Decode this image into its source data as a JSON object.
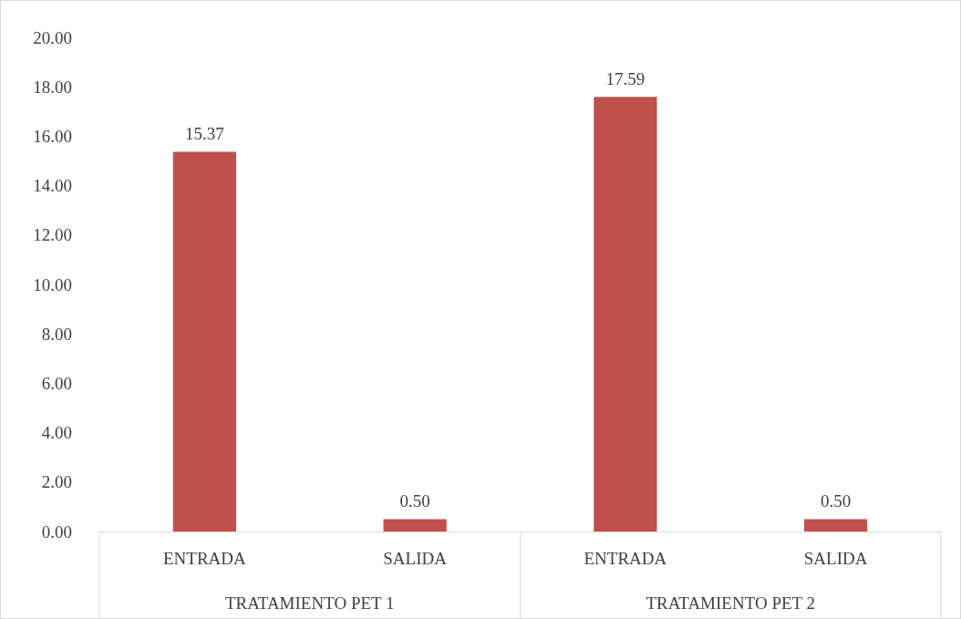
{
  "chart_data": {
    "type": "bar",
    "categories": [
      "ENTRADA",
      "SALIDA",
      "ENTRADA",
      "SALIDA"
    ],
    "values": [
      15.37,
      0.5,
      17.59,
      0.5
    ],
    "value_labels": [
      "15.37",
      "0.50",
      "17.59",
      "0.50"
    ],
    "color": "#c0504d",
    "ylim": [
      0,
      20
    ],
    "yticks": [
      {
        "value": 0,
        "label": "0.00"
      },
      {
        "value": 2,
        "label": "2.00"
      },
      {
        "value": 4,
        "label": "4.00"
      },
      {
        "value": 6,
        "label": "6.00"
      },
      {
        "value": 8,
        "label": "8.00"
      },
      {
        "value": 10,
        "label": "10.00"
      },
      {
        "value": 12,
        "label": "12.00"
      },
      {
        "value": 14,
        "label": "14.00"
      },
      {
        "value": 16,
        "label": "16.00"
      },
      {
        "value": 18,
        "label": "18.00"
      },
      {
        "value": 20,
        "label": "20.00"
      }
    ],
    "annotations": [
      "TRATAMIENTO PET 1",
      "TRATAMIENTO PET 2"
    ]
  }
}
